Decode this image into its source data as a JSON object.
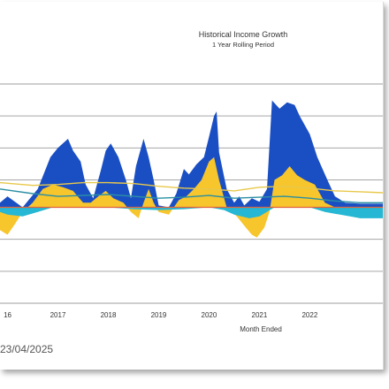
{
  "chart_data": {
    "type": "area",
    "title": "Historical Income Growth",
    "subtitle": "1 Year Rolling Period",
    "xlabel": "Month Ended",
    "ylabel": "",
    "x_tick_labels": [
      "16",
      "2017",
      "2018",
      "2019",
      "2020",
      "2021",
      "2022"
    ],
    "x_range": [
      2015.85,
      2023.45
    ],
    "y_range": [
      -1.05,
      1.35
    ],
    "gridlines": [
      1.0,
      0.65,
      0.3,
      -0.35,
      -0.7
    ],
    "grid": true,
    "legend": "none",
    "colors": {
      "blue_area": "#1a4fc4",
      "yellow_area": "#f7c52c",
      "cyan_area": "#25b7d3",
      "yellow_line": "#e8c84a",
      "teal_line": "#2a8fa3",
      "red_line": "#e0633a"
    },
    "series": [
      {
        "kind": "area",
        "color_key": "blue_area",
        "points": [
          [
            2015.85,
            0.05
          ],
          [
            2016.0,
            0.12
          ],
          [
            2016.3,
            0.0
          ],
          [
            2016.6,
            0.2
          ],
          [
            2016.85,
            0.55
          ],
          [
            2017.0,
            0.65
          ],
          [
            2017.2,
            0.75
          ],
          [
            2017.3,
            0.62
          ],
          [
            2017.45,
            0.5
          ],
          [
            2017.55,
            0.25
          ],
          [
            2017.7,
            0.1
          ],
          [
            2017.85,
            0.4
          ],
          [
            2017.95,
            0.62
          ],
          [
            2018.05,
            0.7
          ],
          [
            2018.2,
            0.55
          ],
          [
            2018.35,
            0.3
          ],
          [
            2018.45,
            0.1
          ],
          [
            2018.55,
            0.45
          ],
          [
            2018.7,
            0.75
          ],
          [
            2018.8,
            0.55
          ],
          [
            2018.9,
            0.3
          ],
          [
            2019.0,
            0.02
          ],
          [
            2019.2,
            0.0
          ],
          [
            2019.35,
            0.15
          ],
          [
            2019.5,
            0.42
          ],
          [
            2019.6,
            0.36
          ],
          [
            2019.75,
            0.47
          ],
          [
            2019.9,
            0.55
          ],
          [
            2020.0,
            0.77
          ],
          [
            2020.1,
            1.0
          ],
          [
            2020.15,
            1.05
          ],
          [
            2020.2,
            0.6
          ],
          [
            2020.35,
            0.2
          ],
          [
            2020.5,
            0.05
          ],
          [
            2020.6,
            0.12
          ],
          [
            2020.7,
            0.02
          ],
          [
            2020.85,
            0.1
          ],
          [
            2021.0,
            0.06
          ],
          [
            2021.15,
            0.2
          ],
          [
            2021.25,
            1.17
          ],
          [
            2021.4,
            1.08
          ],
          [
            2021.55,
            1.15
          ],
          [
            2021.7,
            1.12
          ],
          [
            2021.8,
            1.0
          ],
          [
            2022.0,
            0.8
          ],
          [
            2022.15,
            0.55
          ],
          [
            2022.35,
            0.3
          ],
          [
            2022.5,
            0.12
          ],
          [
            2022.7,
            0.05
          ],
          [
            2023.0,
            0.04
          ],
          [
            2023.45,
            0.04
          ]
        ]
      },
      {
        "kind": "area",
        "color_key": "yellow_area",
        "points": [
          [
            2015.85,
            -0.25
          ],
          [
            2016.0,
            -0.3
          ],
          [
            2016.15,
            -0.18
          ],
          [
            2016.3,
            -0.05
          ],
          [
            2016.5,
            0.05
          ],
          [
            2016.7,
            0.2
          ],
          [
            2016.9,
            0.25
          ],
          [
            2017.1,
            0.22
          ],
          [
            2017.3,
            0.18
          ],
          [
            2017.5,
            0.05
          ],
          [
            2017.65,
            0.05
          ],
          [
            2017.8,
            0.12
          ],
          [
            2017.95,
            0.18
          ],
          [
            2018.1,
            0.1
          ],
          [
            2018.3,
            0.05
          ],
          [
            2018.45,
            -0.05
          ],
          [
            2018.6,
            -0.12
          ],
          [
            2018.7,
            0.05
          ],
          [
            2018.8,
            0.2
          ],
          [
            2018.9,
            0.05
          ],
          [
            2019.0,
            -0.05
          ],
          [
            2019.2,
            -0.08
          ],
          [
            2019.4,
            0.08
          ],
          [
            2019.55,
            0.12
          ],
          [
            2019.7,
            0.2
          ],
          [
            2019.85,
            0.3
          ],
          [
            2020.0,
            0.5
          ],
          [
            2020.1,
            0.55
          ],
          [
            2020.2,
            0.3
          ],
          [
            2020.35,
            0.0
          ],
          [
            2020.55,
            -0.1
          ],
          [
            2020.7,
            -0.2
          ],
          [
            2020.85,
            -0.3
          ],
          [
            2020.95,
            -0.33
          ],
          [
            2021.1,
            -0.22
          ],
          [
            2021.2,
            -0.05
          ],
          [
            2021.3,
            0.3
          ],
          [
            2021.45,
            0.35
          ],
          [
            2021.6,
            0.45
          ],
          [
            2021.75,
            0.35
          ],
          [
            2021.9,
            0.3
          ],
          [
            2022.1,
            0.25
          ],
          [
            2022.3,
            0.05
          ],
          [
            2022.5,
            0.0
          ],
          [
            2022.7,
            -0.05
          ],
          [
            2023.0,
            -0.08
          ],
          [
            2023.45,
            -0.1
          ]
        ]
      },
      {
        "kind": "area",
        "color_key": "cyan_area",
        "points": [
          [
            2015.85,
            -0.05
          ],
          [
            2016.0,
            -0.08
          ],
          [
            2016.3,
            -0.1
          ],
          [
            2016.6,
            -0.05
          ],
          [
            2016.9,
            0.0
          ],
          [
            2017.5,
            0.0
          ],
          [
            2018.0,
            0.0
          ],
          [
            2018.5,
            -0.02
          ],
          [
            2019.0,
            -0.03
          ],
          [
            2019.5,
            -0.02
          ],
          [
            2020.0,
            0.0
          ],
          [
            2020.3,
            -0.03
          ],
          [
            2020.5,
            -0.08
          ],
          [
            2020.8,
            -0.12
          ],
          [
            2021.0,
            -0.1
          ],
          [
            2021.3,
            0.0
          ],
          [
            2022.0,
            0.0
          ],
          [
            2022.3,
            -0.05
          ],
          [
            2022.6,
            -0.08
          ],
          [
            2022.8,
            -0.1
          ],
          [
            2023.0,
            -0.12
          ],
          [
            2023.45,
            -0.12
          ]
        ]
      },
      {
        "kind": "line",
        "color_key": "yellow_line",
        "points": [
          [
            2015.85,
            0.27
          ],
          [
            2016.5,
            0.24
          ],
          [
            2017.0,
            0.25
          ],
          [
            2017.5,
            0.27
          ],
          [
            2018.0,
            0.27
          ],
          [
            2018.5,
            0.26
          ],
          [
            2019.0,
            0.23
          ],
          [
            2019.5,
            0.21
          ],
          [
            2020.0,
            0.2
          ],
          [
            2020.5,
            0.18
          ],
          [
            2021.0,
            0.22
          ],
          [
            2021.5,
            0.23
          ],
          [
            2022.0,
            0.21
          ],
          [
            2022.5,
            0.18
          ],
          [
            2023.0,
            0.17
          ],
          [
            2023.45,
            0.16
          ]
        ]
      },
      {
        "kind": "line",
        "color_key": "teal_line",
        "points": [
          [
            2015.85,
            0.2
          ],
          [
            2016.5,
            0.15
          ],
          [
            2017.0,
            0.12
          ],
          [
            2017.5,
            0.13
          ],
          [
            2018.0,
            0.14
          ],
          [
            2018.5,
            0.12
          ],
          [
            2019.0,
            0.1
          ],
          [
            2019.5,
            0.11
          ],
          [
            2020.0,
            0.13
          ],
          [
            2020.5,
            0.1
          ],
          [
            2021.0,
            0.11
          ],
          [
            2021.5,
            0.12
          ],
          [
            2022.0,
            0.1
          ],
          [
            2022.5,
            0.07
          ],
          [
            2023.0,
            0.05
          ],
          [
            2023.45,
            0.05
          ]
        ]
      },
      {
        "kind": "line",
        "color_key": "red_line",
        "points": [
          [
            2015.85,
            0.0
          ],
          [
            2023.45,
            0.0
          ]
        ]
      }
    ]
  },
  "footer": {
    "date": "23/04/2025"
  }
}
